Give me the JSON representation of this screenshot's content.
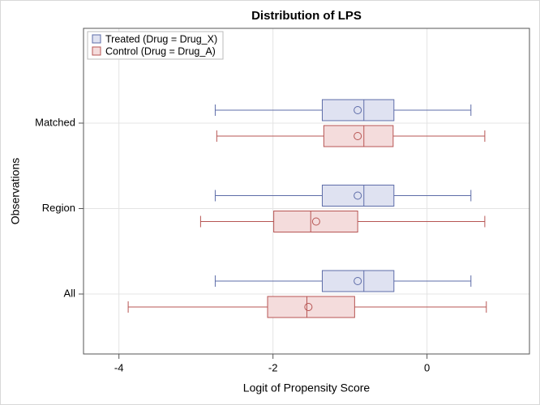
{
  "chart_data": {
    "type": "box",
    "title": "Distribution of LPS",
    "x_label": "Logit of Propensity Score",
    "y_label": "Observations",
    "categories": [
      "Matched",
      "Region",
      "All"
    ],
    "orientation": "horizontal",
    "xlim": [
      -4.46,
      1.33
    ],
    "xticks": [
      -4,
      -2,
      0
    ],
    "grid": true,
    "legend": "top-left",
    "series": [
      {
        "name": "Treated (Drug = Drug_X)",
        "color": "#5d6ca8",
        "fill": "#dfe2f1",
        "stats": [
          {
            "min": -2.75,
            "q1": -1.36,
            "median": -0.82,
            "q3": -0.43,
            "max": 0.57,
            "mean": -0.9
          },
          {
            "min": -2.75,
            "q1": -1.36,
            "median": -0.82,
            "q3": -0.43,
            "max": 0.57,
            "mean": -0.9
          },
          {
            "min": -2.75,
            "q1": -1.36,
            "median": -0.82,
            "q3": -0.43,
            "max": 0.57,
            "mean": -0.9
          }
        ]
      },
      {
        "name": "Control (Drug = Drug_A)",
        "color": "#b75553",
        "fill": "#f4dcdc",
        "stats": [
          {
            "min": -2.73,
            "q1": -1.34,
            "median": -0.82,
            "q3": -0.44,
            "max": 0.75,
            "mean": -0.9
          },
          {
            "min": -2.94,
            "q1": -1.99,
            "median": -1.51,
            "q3": -0.9,
            "max": 0.75,
            "mean": -1.44
          },
          {
            "min": -3.88,
            "q1": -2.07,
            "median": -1.56,
            "q3": -0.94,
            "max": 0.77,
            "mean": -1.54
          }
        ]
      }
    ]
  }
}
